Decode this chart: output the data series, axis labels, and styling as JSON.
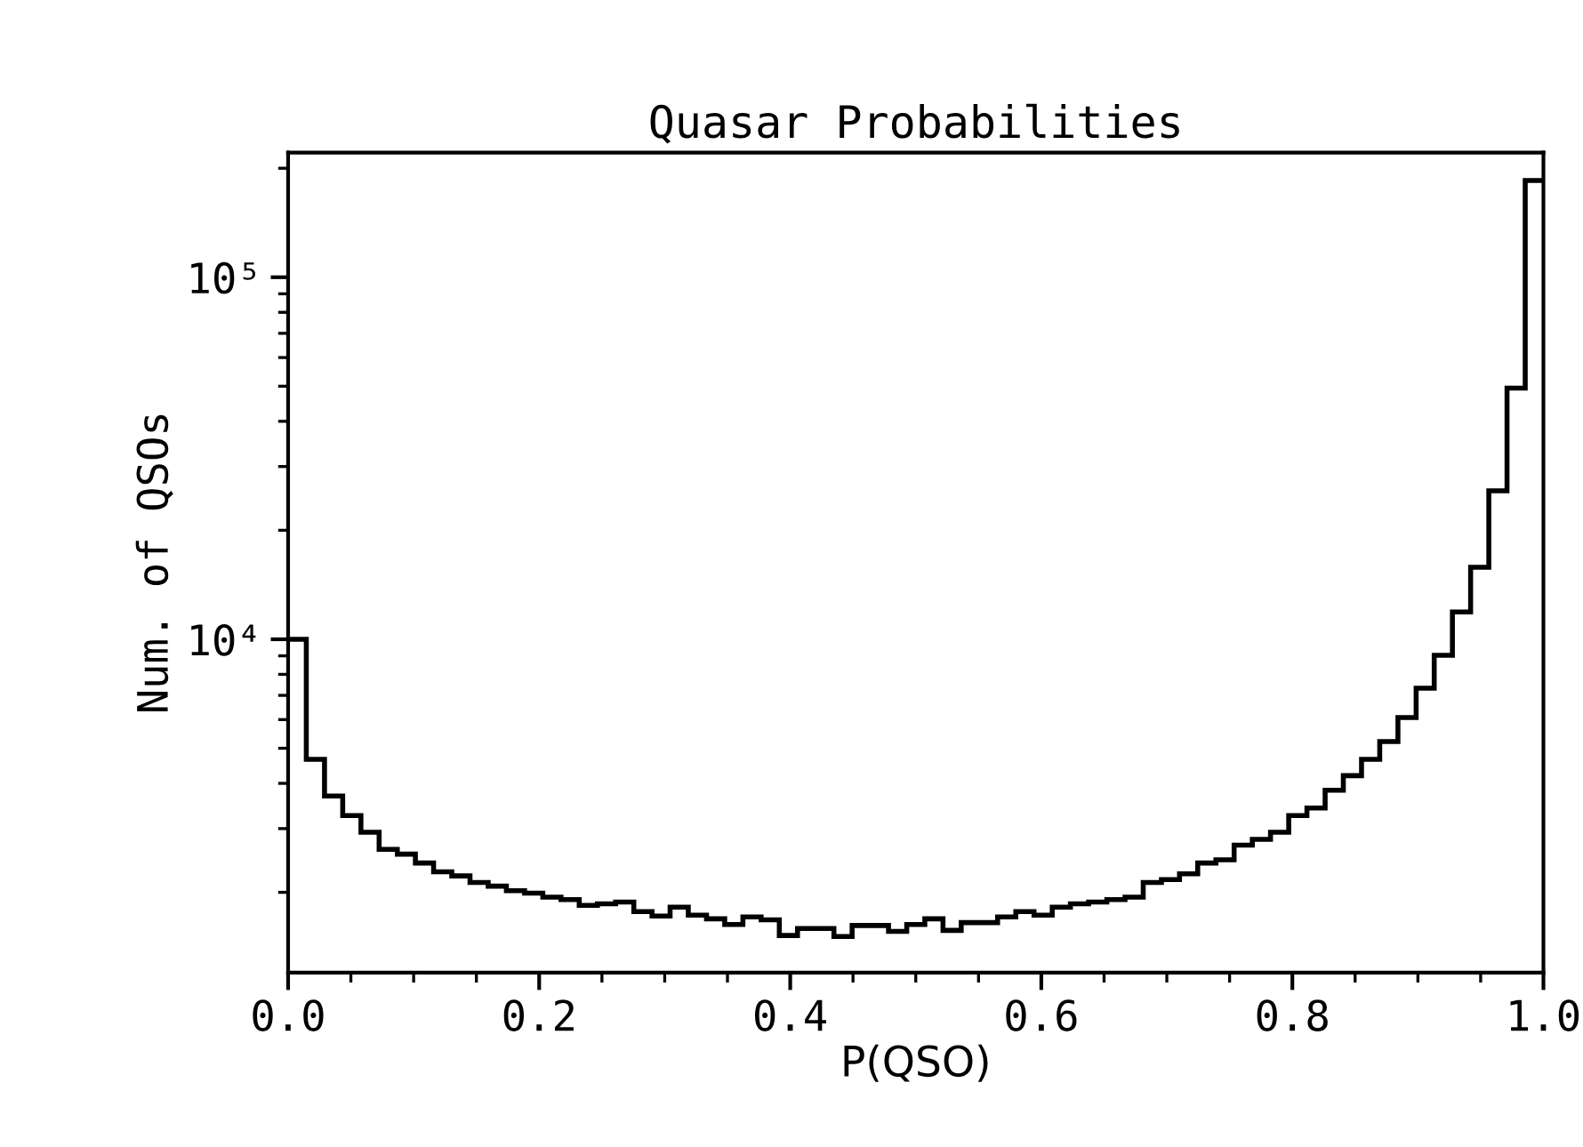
{
  "chart_data": {
    "type": "histogram",
    "title": "Quasar Probabilities",
    "xlabel": "P(QSO)",
    "ylabel": "Num. of QSOs",
    "bins": [
      0,
      0.0145,
      0.029,
      0.0435,
      0.058,
      0.0725,
      0.087,
      0.1014,
      0.1159,
      0.1304,
      0.1449,
      0.1594,
      0.1739,
      0.1884,
      0.2029,
      0.2174,
      0.2319,
      0.2464,
      0.2609,
      0.2754,
      0.2899,
      0.3043,
      0.3188,
      0.3333,
      0.3478,
      0.3623,
      0.3768,
      0.3913,
      0.4058,
      0.4203,
      0.4348,
      0.4493,
      0.4638,
      0.4783,
      0.4928,
      0.5072,
      0.5217,
      0.5362,
      0.5507,
      0.5652,
      0.5797,
      0.5942,
      0.6087,
      0.6232,
      0.6377,
      0.6522,
      0.6667,
      0.6812,
      0.6957,
      0.7101,
      0.7246,
      0.7391,
      0.7536,
      0.7681,
      0.7826,
      0.7971,
      0.8116,
      0.8261,
      0.8406,
      0.8551,
      0.8696,
      0.8841,
      0.8986,
      0.913,
      0.9275,
      0.942,
      0.9565,
      0.971,
      0.9855,
      1
    ],
    "values": [
      10000,
      4660,
      3690,
      3260,
      2930,
      2630,
      2550,
      2410,
      2280,
      2220,
      2130,
      2080,
      2020,
      1990,
      1940,
      1910,
      1840,
      1860,
      1880,
      1770,
      1720,
      1820,
      1730,
      1690,
      1630,
      1710,
      1680,
      1520,
      1590,
      1590,
      1510,
      1620,
      1620,
      1560,
      1630,
      1690,
      1570,
      1650,
      1650,
      1710,
      1770,
      1730,
      1820,
      1860,
      1880,
      1910,
      1940,
      2130,
      2170,
      2250,
      2410,
      2460,
      2700,
      2800,
      2930,
      3260,
      3420,
      3830,
      4200,
      4660,
      5220,
      6080,
      7330,
      9030,
      11900,
      15800,
      25700,
      49400,
      185000
    ],
    "color": "#000000",
    "log": true,
    "xlim": [
      0,
      1
    ],
    "xticks": [
      {
        "value": 0,
        "label": "0.0"
      },
      0.2,
      0.4,
      0.6,
      0.8,
      {
        "value": 1,
        "label": "1.0"
      }
    ],
    "ylim": [
      1200,
      221000
    ],
    "yticks": [
      {
        "value": 10000,
        "label": "10⁴"
      },
      {
        "value": 100000,
        "label": "10⁵"
      }
    ],
    "grid": false,
    "legend": false
  }
}
